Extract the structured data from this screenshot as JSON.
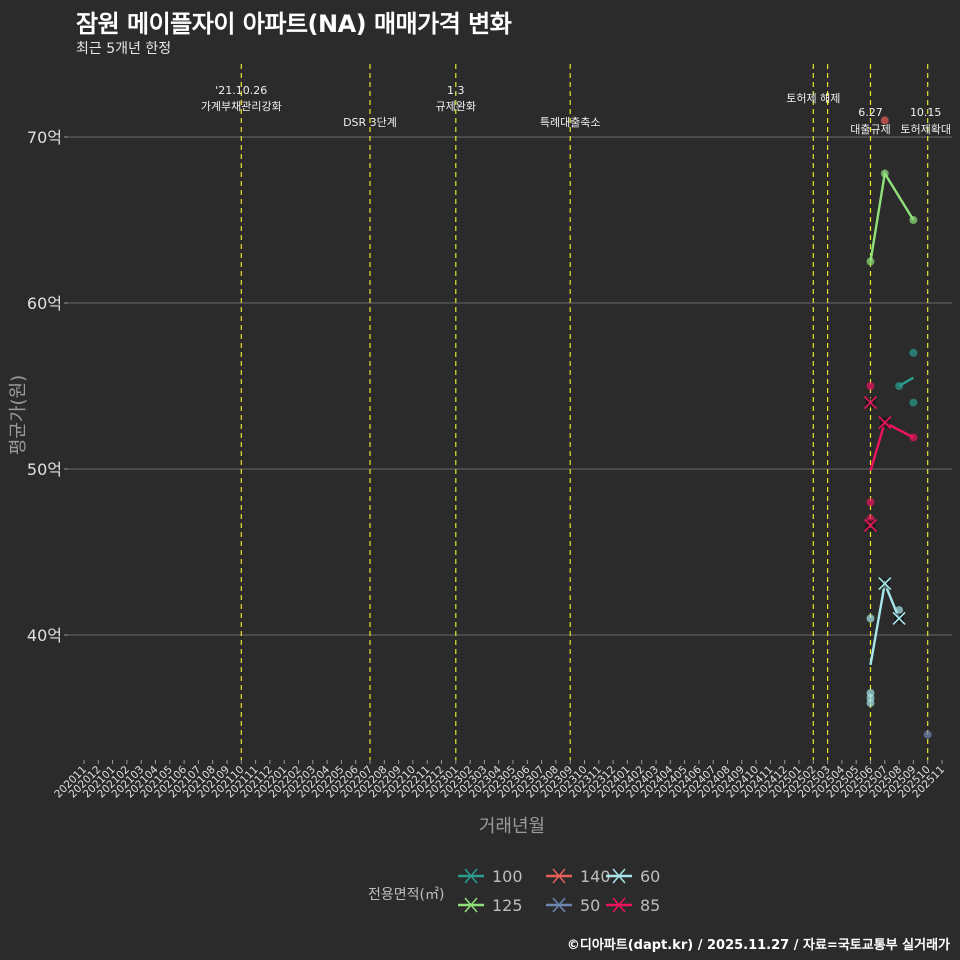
{
  "header": {
    "title": "잠원 메이플자이 아파트(NA) 매매가격 변화",
    "subtitle": "최근 5개년 한정"
  },
  "caption": "©디아파트(dapt.kr) / 2025.11.27 / 자료=국토교통부 실거래가",
  "legend": {
    "title": "전용면적(㎡)",
    "items": [
      {
        "label": "100",
        "color": "#2a9d8f"
      },
      {
        "label": "125",
        "color": "#8fe07a"
      },
      {
        "label": "140",
        "color": "#e8605a"
      },
      {
        "label": "50",
        "color": "#6f86b3"
      },
      {
        "label": "60",
        "color": "#a8e6ea"
      },
      {
        "label": "85",
        "color": "#f0145f"
      }
    ]
  },
  "chart_data": {
    "type": "line",
    "title": "잠원 메이플자이 아파트(NA) 매매가격 변화",
    "subtitle": "최근 5개년 한정",
    "xlabel": "거래년월",
    "ylabel": "평균가(원)",
    "y_ticks": [
      "40억",
      "50억",
      "60억",
      "70억"
    ],
    "y_tick_values": [
      40,
      50,
      60,
      70
    ],
    "ylim": [
      32,
      74.5
    ],
    "grid": "horizontal major lines",
    "legend_position": "bottom",
    "x_categories": [
      "202011",
      "202012",
      "202101",
      "202102",
      "202103",
      "202104",
      "202105",
      "202106",
      "202107",
      "202108",
      "202109",
      "202110",
      "202111",
      "202112",
      "202201",
      "202202",
      "202203",
      "202204",
      "202205",
      "202206",
      "202207",
      "202208",
      "202209",
      "202210",
      "202211",
      "202212",
      "202301",
      "202302",
      "202303",
      "202304",
      "202305",
      "202306",
      "202307",
      "202308",
      "202309",
      "202310",
      "202311",
      "202312",
      "202401",
      "202402",
      "202403",
      "202404",
      "202405",
      "202406",
      "202407",
      "202408",
      "202409",
      "202410",
      "202411",
      "202412",
      "202501",
      "202502",
      "202503",
      "202504",
      "202505",
      "202506",
      "202507",
      "202508",
      "202509",
      "202510",
      "202511"
    ],
    "events": [
      {
        "month": "202110",
        "label_line1": "'21.10.26",
        "label_line2": "가계부채관리강화"
      },
      {
        "month": "202207",
        "label_line1": "",
        "label_line2": "DSR 3단계"
      },
      {
        "month": "202301",
        "label_line1": "1.3",
        "label_line2": "규제완화"
      },
      {
        "month": "202309",
        "label_line1": "",
        "label_line2": "특례대출축소"
      },
      {
        "month": "202502",
        "label_line1": "토허제 해제",
        "label_line2": ""
      },
      {
        "month": "202503",
        "label_line1": "",
        "label_line2": ""
      },
      {
        "month": "202506",
        "label_line1": "6.27",
        "label_line2": "대출규제"
      },
      {
        "month": "202510",
        "label_line1": "10.15",
        "label_line2": "토허제확대"
      }
    ],
    "series": [
      {
        "name": "100",
        "color": "#2a9d8f",
        "mean_line": [
          {
            "x": "202508",
            "y": 55.0
          },
          {
            "x": "202509",
            "y": 55.5
          }
        ],
        "points": [
          {
            "x": "202508",
            "y": 55.0
          },
          {
            "x": "202509",
            "y": 57.0
          },
          {
            "x": "202509",
            "y": 54.0
          }
        ],
        "monthly_mean_markers": []
      },
      {
        "name": "125",
        "color": "#8fe07a",
        "mean_line": [
          {
            "x": "202506",
            "y": 62.5
          },
          {
            "x": "202507",
            "y": 67.8
          },
          {
            "x": "202509",
            "y": 65.0
          }
        ],
        "points": [
          {
            "x": "202506",
            "y": 62.5
          },
          {
            "x": "202507",
            "y": 67.8
          },
          {
            "x": "202509",
            "y": 65.0
          }
        ],
        "monthly_mean_markers": []
      },
      {
        "name": "140",
        "color": "#e8605a",
        "mean_line": [],
        "points": [
          {
            "x": "202507",
            "y": 71.0
          }
        ],
        "monthly_mean_markers": []
      },
      {
        "name": "50",
        "color": "#6f86b3",
        "mean_line": [],
        "points": [
          {
            "x": "202510",
            "y": 34.0
          }
        ],
        "monthly_mean_markers": []
      },
      {
        "name": "60",
        "color": "#a8e6ea",
        "mean_line": [
          {
            "x": "202506",
            "y": 38.2
          },
          {
            "x": "202507",
            "y": 43.1
          },
          {
            "x": "202508",
            "y": 41.0
          }
        ],
        "points": [
          {
            "x": "202506",
            "y": 41.0
          },
          {
            "x": "202506",
            "y": 36.5
          },
          {
            "x": "202506",
            "y": 36.2
          },
          {
            "x": "202506",
            "y": 35.9
          },
          {
            "x": "202508",
            "y": 41.5
          }
        ],
        "monthly_mean_markers": [
          {
            "x": "202507",
            "y": 43.1
          },
          {
            "x": "202508",
            "y": 41.0
          }
        ]
      },
      {
        "name": "85",
        "color": "#f0145f",
        "mean_line": [
          {
            "x": "202506",
            "y": 49.9
          },
          {
            "x": "202507",
            "y": 52.8
          },
          {
            "x": "202509",
            "y": 51.9
          }
        ],
        "points": [
          {
            "x": "202506",
            "y": 55.0
          },
          {
            "x": "202506",
            "y": 48.0
          },
          {
            "x": "202506",
            "y": 47.0
          },
          {
            "x": "202509",
            "y": 51.9
          }
        ],
        "monthly_mean_markers": [
          {
            "x": "202506",
            "y": 54.0
          },
          {
            "x": "202506",
            "y": 46.6
          },
          {
            "x": "202507",
            "y": 52.8
          }
        ]
      }
    ]
  }
}
